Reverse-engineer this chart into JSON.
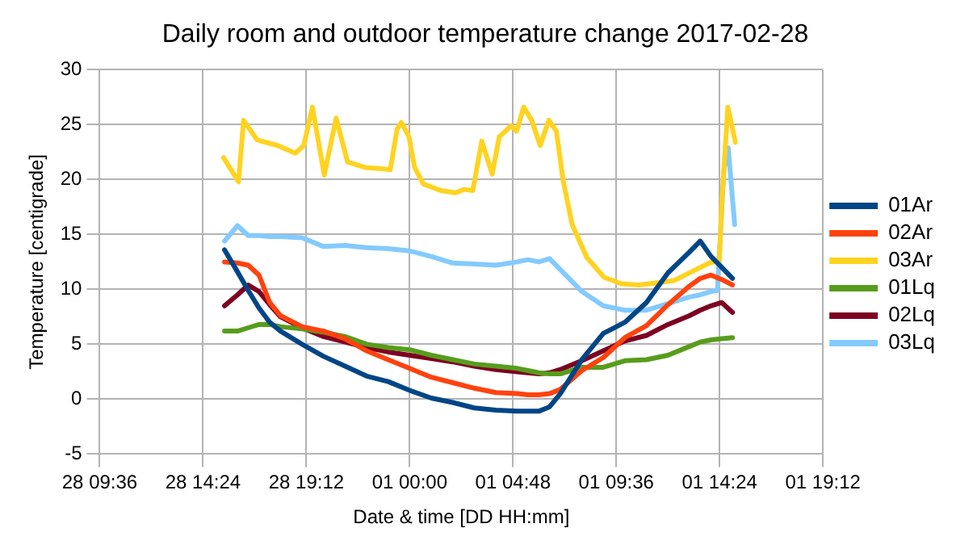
{
  "chart_data": {
    "type": "line",
    "title": "Daily room and outdoor temperature change 2017-02-28",
    "xlabel": "Date & time [DD HH:mm]",
    "ylabel": "Temperature [centigrade]",
    "xlim": [
      "2017-02-28T09:36",
      "2017-03-01T19:12"
    ],
    "xticks": [
      {
        "value": "2017-02-28T09:36",
        "label": "28 09:36"
      },
      {
        "value": "2017-02-28T14:24",
        "label": "28 14:24"
      },
      {
        "value": "2017-02-28T19:12",
        "label": "28 19:12"
      },
      {
        "value": "2017-03-01T00:00",
        "label": "01 00:00"
      },
      {
        "value": "2017-03-01T04:48",
        "label": "01 04:48"
      },
      {
        "value": "2017-03-01T09:36",
        "label": "01 09:36"
      },
      {
        "value": "2017-03-01T14:24",
        "label": "01 14:24"
      },
      {
        "value": "2017-03-01T19:12",
        "label": "01 19:12"
      }
    ],
    "ylim": [
      -5,
      30
    ],
    "yticks": [
      -5,
      0,
      5,
      10,
      15,
      20,
      25,
      30
    ],
    "grid": true,
    "legend": "right",
    "marker": "none",
    "line_style": "solid",
    "series": [
      {
        "name": "01Ar",
        "color": "#004586",
        "x": [
          "2017-02-28T15:24",
          "2017-02-28T16:00",
          "2017-02-28T16:30",
          "2017-02-28T17:00",
          "2017-02-28T17:30",
          "2017-02-28T18:00",
          "2017-02-28T19:00",
          "2017-02-28T20:00",
          "2017-02-28T21:00",
          "2017-02-28T22:00",
          "2017-02-28T23:00",
          "2017-03-01T00:00",
          "2017-03-01T01:00",
          "2017-03-01T02:00",
          "2017-03-01T03:00",
          "2017-03-01T04:00",
          "2017-03-01T05:00",
          "2017-03-01T05:30",
          "2017-03-01T06:00",
          "2017-03-01T06:30",
          "2017-03-01T07:00",
          "2017-03-01T08:00",
          "2017-03-01T09:00",
          "2017-03-01T10:00",
          "2017-03-01T11:00",
          "2017-03-01T12:00",
          "2017-03-01T13:00",
          "2017-03-01T13:30",
          "2017-03-01T14:00",
          "2017-03-01T14:30",
          "2017-03-01T15:00"
        ],
        "values": [
          13.6,
          11.6,
          9.9,
          8.3,
          7.0,
          6.2,
          5.0,
          3.9,
          3.0,
          2.1,
          1.6,
          0.8,
          0.1,
          -0.3,
          -0.8,
          -1.0,
          -1.1,
          -1.1,
          -1.1,
          -0.7,
          0.5,
          3.6,
          6.0,
          7.0,
          8.8,
          11.5,
          13.4,
          14.4,
          13.0,
          12.0,
          11.0
        ]
      },
      {
        "name": "02Ar",
        "color": "#ff420e",
        "x": [
          "2017-02-28T15:24",
          "2017-02-28T16:00",
          "2017-02-28T16:30",
          "2017-02-28T17:00",
          "2017-02-28T17:30",
          "2017-02-28T18:00",
          "2017-02-28T19:00",
          "2017-02-28T20:00",
          "2017-02-28T21:00",
          "2017-02-28T22:00",
          "2017-02-28T23:00",
          "2017-03-01T00:00",
          "2017-03-01T01:00",
          "2017-03-01T02:00",
          "2017-03-01T03:00",
          "2017-03-01T04:00",
          "2017-03-01T05:00",
          "2017-03-01T05:30",
          "2017-03-01T06:00",
          "2017-03-01T06:30",
          "2017-03-01T07:00",
          "2017-03-01T08:00",
          "2017-03-01T09:00",
          "2017-03-01T10:00",
          "2017-03-01T11:00",
          "2017-03-01T12:00",
          "2017-03-01T13:00",
          "2017-03-01T13:30",
          "2017-03-01T14:00",
          "2017-03-01T14:30",
          "2017-03-01T15:00"
        ],
        "values": [
          12.5,
          12.4,
          12.2,
          11.3,
          8.8,
          7.6,
          6.6,
          6.2,
          5.5,
          4.4,
          3.6,
          2.8,
          2.0,
          1.5,
          1.0,
          0.6,
          0.5,
          0.4,
          0.4,
          0.5,
          0.9,
          2.6,
          3.8,
          5.6,
          6.7,
          8.6,
          10.3,
          11.0,
          11.3,
          10.9,
          10.4
        ]
      },
      {
        "name": "03Ar",
        "color": "#ffd320",
        "x": [
          "2017-02-28T15:21",
          "2017-02-28T16:03",
          "2017-02-28T16:17",
          "2017-02-28T16:55",
          "2017-02-28T17:52",
          "2017-02-28T18:41",
          "2017-02-28T19:05",
          "2017-02-28T19:29",
          "2017-02-28T20:02",
          "2017-02-28T20:35",
          "2017-02-28T21:07",
          "2017-02-28T21:56",
          "2017-02-28T22:37",
          "2017-02-28T23:06",
          "2017-02-28T23:25",
          "2017-02-28T23:37",
          "2017-02-28T23:58",
          "2017-03-01T00:14",
          "2017-03-01T00:38",
          "2017-03-01T01:27",
          "2017-03-01T02:08",
          "2017-03-01T02:32",
          "2017-03-01T02:56",
          "2017-03-01T03:21",
          "2017-03-01T03:50",
          "2017-03-01T04:10",
          "2017-03-01T04:43",
          "2017-03-01T04:58",
          "2017-03-01T05:18",
          "2017-03-01T05:40",
          "2017-03-01T06:04",
          "2017-03-01T06:28",
          "2017-03-01T06:49",
          "2017-03-01T07:08",
          "2017-03-01T07:33",
          "2017-03-01T08:14",
          "2017-03-01T09:02",
          "2017-03-01T09:51",
          "2017-03-01T10:40",
          "2017-03-01T11:29",
          "2017-03-01T12:17",
          "2017-03-01T13:06",
          "2017-03-01T13:55",
          "2017-03-01T14:23",
          "2017-03-01T14:31",
          "2017-03-01T14:47",
          "2017-03-01T15:08"
        ],
        "values": [
          22.0,
          19.8,
          25.4,
          23.6,
          23.1,
          22.4,
          23.1,
          26.6,
          20.4,
          25.6,
          21.6,
          21.1,
          21.0,
          20.9,
          24.6,
          25.2,
          23.9,
          21.1,
          19.6,
          19.0,
          18.8,
          19.1,
          19.0,
          23.5,
          20.5,
          23.9,
          24.9,
          24.4,
          26.6,
          25.4,
          23.1,
          25.4,
          24.4,
          19.9,
          15.9,
          12.9,
          11.1,
          10.5,
          10.4,
          10.6,
          10.8,
          11.6,
          12.4,
          12.6,
          18.4,
          26.6,
          23.4
        ]
      },
      {
        "name": "01Lq",
        "color": "#579d1c",
        "x": [
          "2017-02-28T15:24",
          "2017-02-28T16:00",
          "2017-02-28T16:30",
          "2017-02-28T17:00",
          "2017-02-28T17:30",
          "2017-02-28T18:00",
          "2017-02-28T19:00",
          "2017-02-28T20:00",
          "2017-02-28T21:00",
          "2017-02-28T22:00",
          "2017-02-28T23:00",
          "2017-03-01T00:00",
          "2017-03-01T01:00",
          "2017-03-01T02:00",
          "2017-03-01T03:00",
          "2017-03-01T04:00",
          "2017-03-01T05:00",
          "2017-03-01T05:30",
          "2017-03-01T06:00",
          "2017-03-01T06:30",
          "2017-03-01T07:00",
          "2017-03-01T08:00",
          "2017-03-01T09:00",
          "2017-03-01T10:00",
          "2017-03-01T11:00",
          "2017-03-01T12:00",
          "2017-03-01T13:00",
          "2017-03-01T13:30",
          "2017-03-01T14:00",
          "2017-03-01T14:30",
          "2017-03-01T15:00"
        ],
        "values": [
          6.2,
          6.2,
          6.5,
          6.8,
          6.8,
          6.6,
          6.4,
          6.1,
          5.7,
          5.0,
          4.7,
          4.5,
          4.0,
          3.6,
          3.2,
          3.0,
          2.8,
          2.6,
          2.4,
          2.3,
          2.3,
          2.9,
          2.9,
          3.5,
          3.6,
          4.0,
          4.8,
          5.2,
          5.4,
          5.5,
          5.6
        ]
      },
      {
        "name": "02Lq",
        "color": "#7e0021",
        "x": [
          "2017-02-28T15:24",
          "2017-02-28T16:00",
          "2017-02-28T16:30",
          "2017-02-28T17:00",
          "2017-02-28T17:30",
          "2017-02-28T18:00",
          "2017-02-28T19:00",
          "2017-02-28T20:00",
          "2017-02-28T21:00",
          "2017-02-28T22:00",
          "2017-02-28T23:00",
          "2017-03-01T00:00",
          "2017-03-01T01:00",
          "2017-03-01T02:00",
          "2017-03-01T03:00",
          "2017-03-01T04:00",
          "2017-03-01T05:00",
          "2017-03-01T05:30",
          "2017-03-01T06:00",
          "2017-03-01T06:30",
          "2017-03-01T07:00",
          "2017-03-01T08:00",
          "2017-03-01T09:00",
          "2017-03-01T10:00",
          "2017-03-01T11:00",
          "2017-03-01T12:00",
          "2017-03-01T13:00",
          "2017-03-01T13:30",
          "2017-03-01T14:00",
          "2017-03-01T14:30",
          "2017-03-01T15:00"
        ],
        "values": [
          8.5,
          9.5,
          10.4,
          9.8,
          8.6,
          7.5,
          6.5,
          5.7,
          5.2,
          4.7,
          4.3,
          4.0,
          3.7,
          3.4,
          3.0,
          2.7,
          2.5,
          2.4,
          2.3,
          2.4,
          2.7,
          3.5,
          4.4,
          5.3,
          5.8,
          6.8,
          7.6,
          8.1,
          8.5,
          8.8,
          7.9
        ]
      },
      {
        "name": "03Lq",
        "color": "#83caff",
        "x": [
          "2017-02-28T15:24",
          "2017-02-28T16:00",
          "2017-02-28T16:30",
          "2017-02-28T17:00",
          "2017-02-28T17:30",
          "2017-02-28T18:00",
          "2017-02-28T19:00",
          "2017-02-28T20:00",
          "2017-02-28T21:00",
          "2017-02-28T22:00",
          "2017-02-28T23:00",
          "2017-03-01T00:00",
          "2017-03-01T01:00",
          "2017-03-01T02:00",
          "2017-03-01T03:00",
          "2017-03-01T04:00",
          "2017-03-01T05:00",
          "2017-03-01T05:30",
          "2017-03-01T06:00",
          "2017-03-01T06:30",
          "2017-03-01T07:00",
          "2017-03-01T08:00",
          "2017-03-01T09:00",
          "2017-03-01T10:00",
          "2017-03-01T11:00",
          "2017-03-01T12:00",
          "2017-03-01T13:00",
          "2017-03-01T13:30",
          "2017-03-01T14:00",
          "2017-03-01T14:18",
          "2017-03-01T14:36",
          "2017-03-01T14:48",
          "2017-03-01T15:06"
        ],
        "values": [
          14.4,
          15.8,
          14.9,
          14.9,
          14.8,
          14.8,
          14.7,
          13.9,
          14.0,
          13.8,
          13.7,
          13.5,
          13.0,
          12.4,
          12.3,
          12.2,
          12.5,
          12.7,
          12.5,
          12.8,
          11.8,
          9.8,
          8.5,
          8.1,
          8.1,
          8.7,
          9.3,
          9.5,
          9.8,
          9.9,
          20.9,
          22.9,
          15.9
        ]
      }
    ]
  }
}
